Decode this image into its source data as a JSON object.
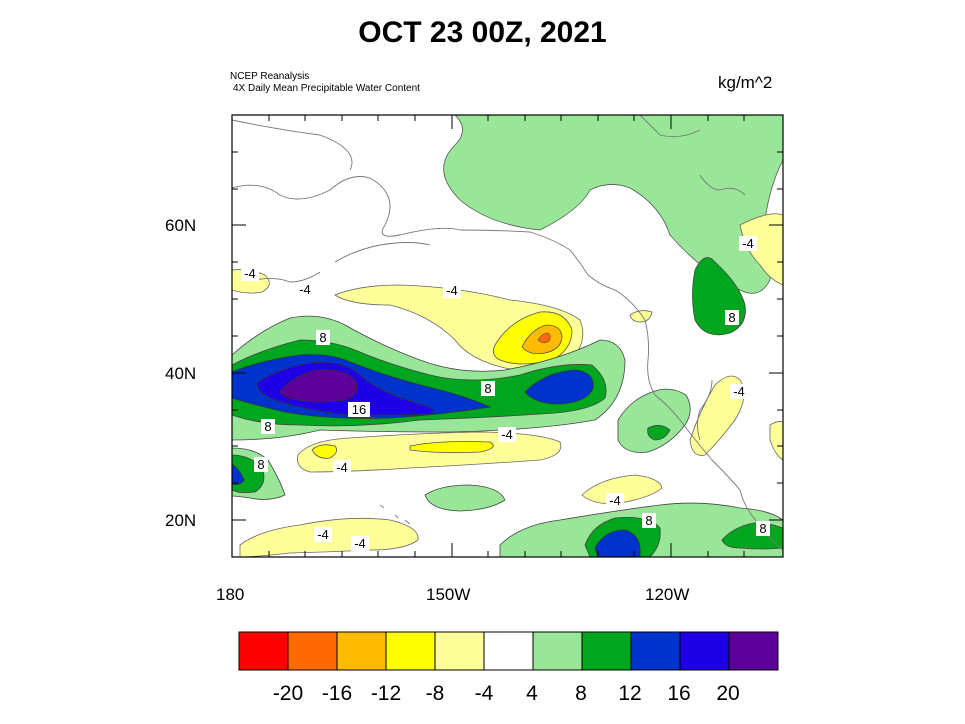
{
  "title": "OCT 23 00Z, 2021",
  "source_line1": "NCEP Reanalysis",
  "source_line2": "4X Daily Mean  Precipitable Water Content",
  "units": "kg/m^2",
  "map": {
    "lat_labels": [
      "60N",
      "40N",
      "20N"
    ],
    "lon_labels": [
      "180",
      "150W",
      "120W"
    ],
    "contour_labels": {
      "neg4": "-4",
      "pos8": "8",
      "pos16": "16"
    }
  },
  "colorbar": {
    "labels": [
      "-20",
      "-16",
      "-12",
      "-8",
      "-4",
      "4",
      "8",
      "12",
      "16",
      "20"
    ],
    "colors": [
      "#ff0000",
      "#ff6a00",
      "#ffbb00",
      "#ffff00",
      "#ffff99",
      "#ffffff",
      "#99e699",
      "#00a61e",
      "#0033cc",
      "#1f00e6",
      "#5c0099"
    ]
  }
}
